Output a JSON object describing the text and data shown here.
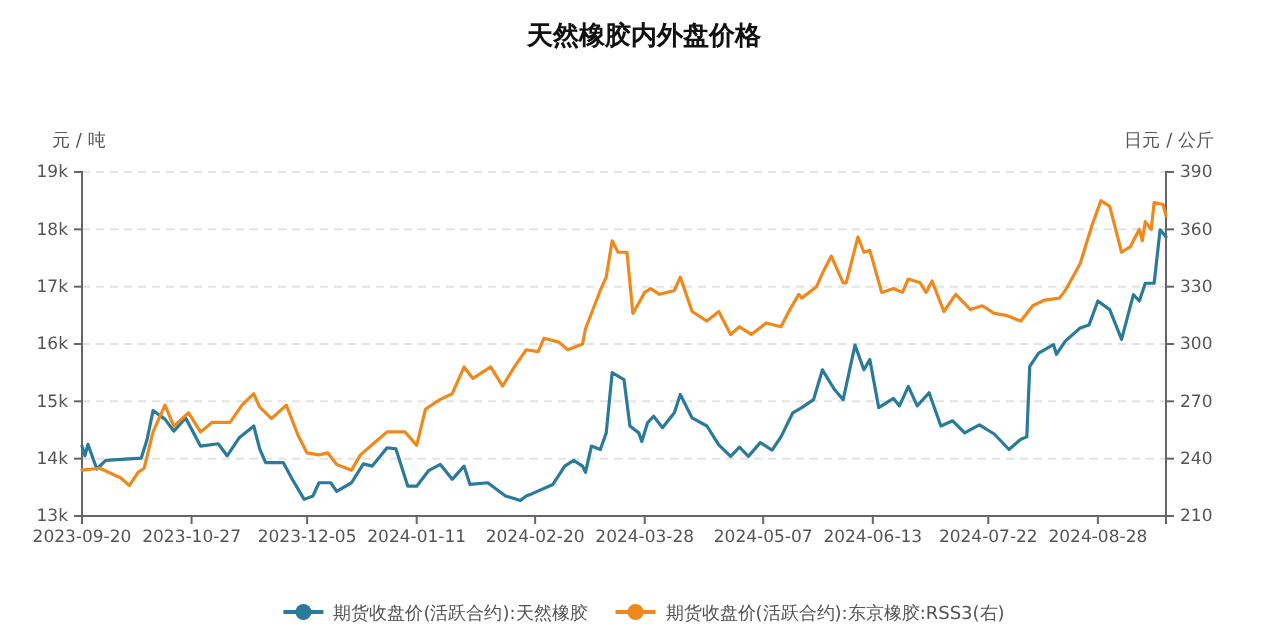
{
  "chart_data": {
    "type": "line",
    "title": "天然橡胶内外盘价格",
    "ylabel": "元 / 吨",
    "y2label": "日元 / 公斤",
    "xlim": [
      "2023-09-20",
      "2024-09-20"
    ],
    "xticks": [
      "2023-09-20",
      "2023-10-27",
      "2023-12-05",
      "2024-01-11",
      "2024-02-20",
      "2024-03-28",
      "2024-05-07",
      "2024-06-13",
      "2024-07-22",
      "2024-08-28"
    ],
    "ylim": [
      13000,
      19000
    ],
    "yticks": [
      {
        "value": 13000,
        "label": "13k"
      },
      {
        "value": 14000,
        "label": "14k"
      },
      {
        "value": 15000,
        "label": "15k"
      },
      {
        "value": 16000,
        "label": "16k"
      },
      {
        "value": 17000,
        "label": "17k"
      },
      {
        "value": 18000,
        "label": "18k"
      },
      {
        "value": 19000,
        "label": "19k"
      }
    ],
    "y2lim": [
      210,
      390
    ],
    "y2ticks": [
      210,
      240,
      270,
      300,
      330,
      360,
      390
    ],
    "grid": "y",
    "legend": "bottom",
    "series": [
      {
        "name": "期货收盘价(活跃合约):天然橡胶",
        "color": "#2b7a9b",
        "x": [
          "2023-09-20",
          "2023-09-21",
          "2023-09-22",
          "2023-09-25",
          "2023-09-28",
          "2023-10-10",
          "2023-10-12",
          "2023-10-14",
          "2023-10-18",
          "2023-10-21",
          "2023-10-25",
          "2023-10-30",
          "2023-11-05",
          "2023-11-08",
          "2023-11-12",
          "2023-11-17",
          "2023-11-19",
          "2023-11-21",
          "2023-11-27",
          "2023-11-30",
          "2023-12-04",
          "2023-12-07",
          "2023-12-09",
          "2023-12-13",
          "2023-12-15",
          "2023-12-20",
          "2023-12-24",
          "2023-12-27",
          "2024-01-01",
          "2024-01-04",
          "2024-01-08",
          "2024-01-11",
          "2024-01-15",
          "2024-01-19",
          "2024-01-23",
          "2024-01-27",
          "2024-01-29",
          "2024-02-04",
          "2024-02-10",
          "2024-02-15",
          "2024-02-17",
          "2024-02-19",
          "2024-02-26",
          "2024-03-01",
          "2024-03-04",
          "2024-03-07",
          "2024-03-08",
          "2024-03-10",
          "2024-03-13",
          "2024-03-15",
          "2024-03-17",
          "2024-03-21",
          "2024-03-23",
          "2024-03-26",
          "2024-03-27",
          "2024-03-29",
          "2024-03-31",
          "2024-04-03",
          "2024-04-07",
          "2024-04-09",
          "2024-04-13",
          "2024-04-18",
          "2024-04-22",
          "2024-04-26",
          "2024-04-29",
          "2024-05-02",
          "2024-05-06",
          "2024-05-10",
          "2024-05-13",
          "2024-05-17",
          "2024-05-20",
          "2024-05-24",
          "2024-05-27",
          "2024-05-31",
          "2024-06-03",
          "2024-06-07",
          "2024-06-10",
          "2024-06-12",
          "2024-06-15",
          "2024-06-20",
          "2024-06-22",
          "2024-06-25",
          "2024-06-28",
          "2024-07-02",
          "2024-07-06",
          "2024-07-10",
          "2024-07-14",
          "2024-07-19",
          "2024-07-24",
          "2024-07-29",
          "2024-08-02",
          "2024-08-04",
          "2024-08-05",
          "2024-08-08",
          "2024-08-13",
          "2024-08-14",
          "2024-08-17",
          "2024-08-22",
          "2024-08-25",
          "2024-08-28",
          "2024-09-01",
          "2024-09-05",
          "2024-09-09",
          "2024-09-11",
          "2024-09-13",
          "2024-09-16",
          "2024-09-18",
          "2024-09-20"
        ],
        "values": [
          14220,
          14050,
          14250,
          13820,
          13970,
          14010,
          14340,
          14840,
          14690,
          14480,
          14710,
          14220,
          14260,
          14050,
          14360,
          14570,
          14170,
          13930,
          13930,
          13640,
          13290,
          13350,
          13580,
          13580,
          13430,
          13580,
          13910,
          13870,
          14190,
          14170,
          13520,
          13520,
          13790,
          13900,
          13640,
          13870,
          13550,
          13580,
          13350,
          13270,
          13350,
          13390,
          13550,
          13870,
          13970,
          13870,
          13760,
          14220,
          14160,
          14450,
          15500,
          15380,
          14570,
          14450,
          14300,
          14630,
          14740,
          14540,
          14800,
          15120,
          14710,
          14570,
          14240,
          14040,
          14200,
          14040,
          14280,
          14150,
          14380,
          14800,
          14890,
          15030,
          15550,
          15210,
          15030,
          15980,
          15550,
          15730,
          14890,
          15050,
          14920,
          15260,
          14920,
          15150,
          14570,
          14660,
          14450,
          14590,
          14430,
          14160,
          14340,
          14380,
          15610,
          15840,
          15990,
          15820,
          16050,
          16280,
          16330,
          16750,
          16600,
          16080,
          16860,
          16750,
          17060,
          17060,
          17990,
          17870
        ]
      },
      {
        "name": "期货收盘价(活跃合约):东京橡胶:RSS3(右)",
        "color": "#f0891c",
        "axis": "y2",
        "x": [
          "2023-09-20",
          "2023-09-26",
          "2023-10-03",
          "2023-10-06",
          "2023-10-09",
          "2023-10-11",
          "2023-10-14",
          "2023-10-18",
          "2023-10-21",
          "2023-10-26",
          "2023-10-30",
          "2023-11-03",
          "2023-11-09",
          "2023-11-13",
          "2023-11-17",
          "2023-11-19",
          "2023-11-23",
          "2023-11-28",
          "2023-12-02",
          "2023-12-05",
          "2023-12-09",
          "2023-12-12",
          "2023-12-15",
          "2023-12-20",
          "2023-12-23",
          "2023-12-29",
          "2024-01-01",
          "2024-01-07",
          "2024-01-11",
          "2024-01-14",
          "2024-01-19",
          "2024-01-23",
          "2024-01-27",
          "2024-01-30",
          "2024-02-05",
          "2024-02-09",
          "2024-02-13",
          "2024-02-17",
          "2024-02-21",
          "2024-02-23",
          "2024-02-28",
          "2024-03-02",
          "2024-03-07",
          "2024-03-08",
          "2024-03-13",
          "2024-03-15",
          "2024-03-17",
          "2024-03-19",
          "2024-03-22",
          "2024-03-24",
          "2024-03-28",
          "2024-03-30",
          "2024-04-02",
          "2024-04-07",
          "2024-04-09",
          "2024-04-13",
          "2024-04-18",
          "2024-04-22",
          "2024-04-26",
          "2024-04-29",
          "2024-05-03",
          "2024-05-08",
          "2024-05-13",
          "2024-05-16",
          "2024-05-19",
          "2024-05-20",
          "2024-05-25",
          "2024-05-27",
          "2024-05-30",
          "2024-06-03",
          "2024-06-04",
          "2024-06-08",
          "2024-06-10",
          "2024-06-12",
          "2024-06-16",
          "2024-06-20",
          "2024-06-23",
          "2024-06-25",
          "2024-06-29",
          "2024-07-01",
          "2024-07-03",
          "2024-07-07",
          "2024-07-11",
          "2024-07-16",
          "2024-07-20",
          "2024-07-24",
          "2024-07-28",
          "2024-08-02",
          "2024-08-06",
          "2024-08-10",
          "2024-08-15",
          "2024-08-17",
          "2024-08-22",
          "2024-08-26",
          "2024-08-29",
          "2024-09-01",
          "2024-09-05",
          "2024-09-08",
          "2024-09-11",
          "2024-09-12",
          "2024-09-13",
          "2024-09-15",
          "2024-09-16",
          "2024-09-19",
          "2024-09-20"
        ],
        "values": [
          234,
          235,
          230,
          226,
          233,
          235,
          254,
          268,
          257,
          264,
          254,
          259,
          259,
          268,
          274,
          267,
          261,
          268,
          252,
          243,
          242,
          243,
          237,
          234,
          242,
          250,
          254,
          254,
          247,
          266,
          271,
          274,
          288,
          282,
          288,
          278,
          288,
          297,
          296,
          303,
          301,
          297,
          300,
          308,
          328,
          335,
          354,
          348,
          348,
          316,
          327,
          329,
          326,
          328,
          335,
          317,
          312,
          317,
          305,
          309,
          305,
          311,
          309,
          318,
          326,
          324,
          330,
          337,
          346,
          332,
          332,
          356,
          348,
          349,
          327,
          329,
          327,
          334,
          332,
          327,
          333,
          317,
          326,
          318,
          320,
          316,
          315,
          312,
          320,
          323,
          324,
          328,
          342,
          362,
          375,
          372,
          348,
          351,
          360,
          354,
          364,
          360,
          374,
          373,
          367
        ]
      }
    ]
  }
}
